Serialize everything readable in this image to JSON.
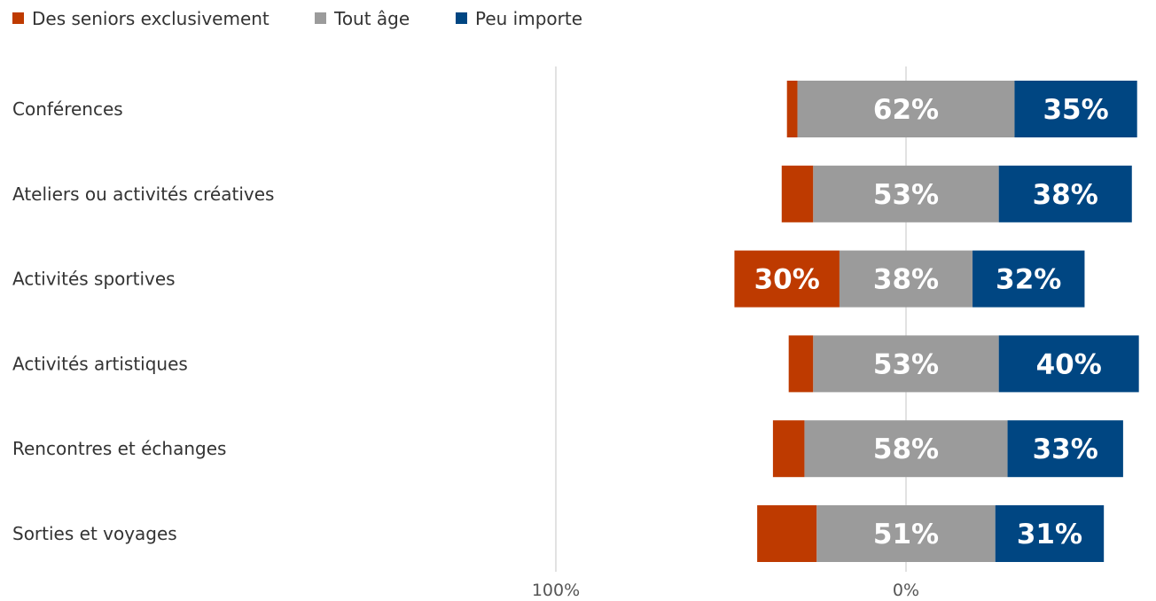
{
  "chart_data": {
    "type": "bar",
    "orientation": "horizontal",
    "stacking": "diverging",
    "legend_position": "top-left",
    "grid": true,
    "categories": [
      "Conférences",
      "Ateliers ou activités créatives",
      "Activités sportives",
      "Activités artistiques",
      "Rencontres et échanges",
      "Sorties et voyages"
    ],
    "series": [
      {
        "name": "Des seniors exclusivement",
        "color": "#BE3A00",
        "direction": "left",
        "values": [
          3,
          9,
          30,
          7,
          9,
          17
        ],
        "labels": [
          "",
          "",
          "30%",
          "",
          "",
          ""
        ]
      },
      {
        "name": "Tout âge",
        "color": "#9B9B9B",
        "direction": "split",
        "values": [
          62,
          53,
          38,
          53,
          58,
          51
        ],
        "labels": [
          "62%",
          "53%",
          "38%",
          "53%",
          "58%",
          "51%"
        ]
      },
      {
        "name": "Peu importe",
        "color": "#004682",
        "direction": "right",
        "values": [
          35,
          38,
          32,
          40,
          33,
          31
        ],
        "labels": [
          "35%",
          "38%",
          "32%",
          "40%",
          "33%",
          "31%"
        ]
      }
    ],
    "xlim": [
      -100,
      100
    ],
    "x_ticks": [
      {
        "value": -100,
        "label": "100%"
      },
      {
        "value": 0,
        "label": "0%"
      }
    ]
  }
}
